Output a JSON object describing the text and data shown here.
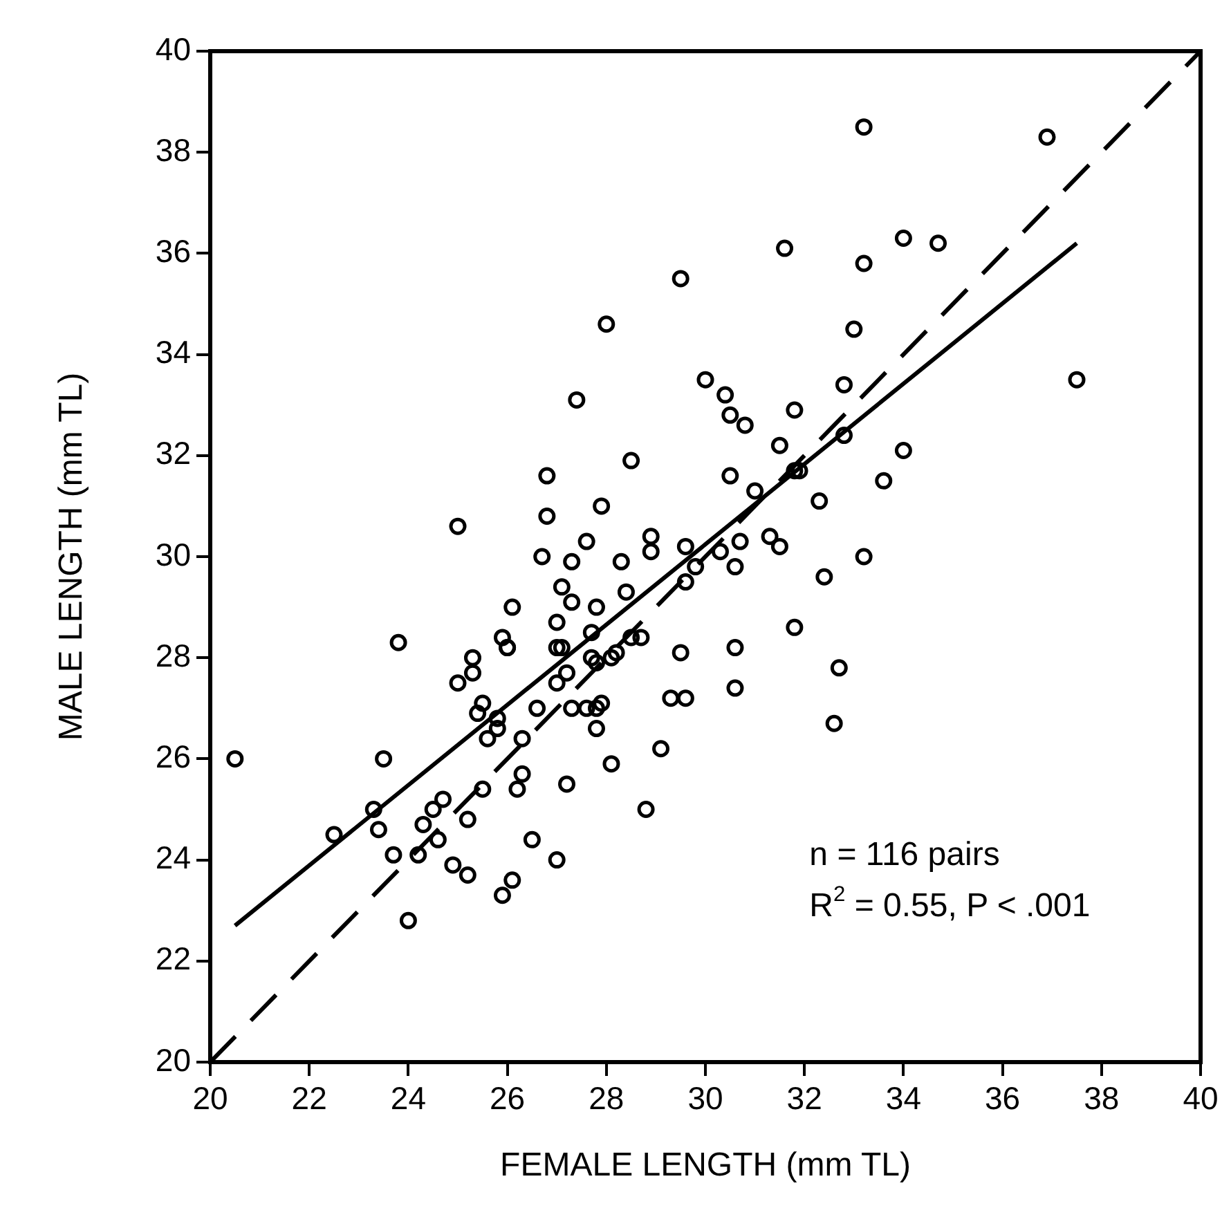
{
  "chart_data": {
    "type": "scatter",
    "xlabel": "FEMALE LENGTH (mm TL)",
    "ylabel": "MALE LENGTH (mm TL)",
    "xlim": [
      20,
      40
    ],
    "xticks": [
      20,
      22,
      24,
      26,
      28,
      30,
      32,
      34,
      36,
      38,
      40
    ],
    "ylim": [
      20,
      40
    ],
    "yticks": [
      20,
      22,
      24,
      26,
      28,
      30,
      32,
      34,
      36,
      38,
      40
    ],
    "grid": false,
    "legend": false,
    "annotations": [
      "n = 116 pairs",
      "R$^{2}$ = 0.55, P < .001"
    ],
    "series": [
      {
        "type": "scatter",
        "color": "#000000",
        "marker": "circle",
        "x": [
          20.5,
          22.5,
          23.3,
          23.4,
          23.5,
          23.7,
          23.8,
          24.0,
          24.2,
          24.3,
          24.5,
          24.6,
          24.7,
          24.9,
          25.0,
          25.0,
          25.2,
          25.2,
          25.3,
          25.3,
          25.4,
          25.5,
          25.5,
          25.6,
          25.8,
          25.8,
          25.9,
          25.9,
          26.0,
          26.0,
          26.1,
          26.1,
          26.2,
          26.3,
          26.3,
          26.5,
          26.6,
          26.7,
          26.8,
          26.8,
          27.0,
          27.0,
          27.0,
          27.0,
          27.1,
          27.1,
          27.2,
          27.2,
          27.3,
          27.3,
          27.3,
          27.4,
          27.6,
          27.6,
          27.7,
          27.7,
          27.8,
          27.8,
          27.8,
          27.8,
          27.9,
          27.9,
          28.0,
          28.1,
          28.1,
          28.2,
          28.3,
          28.4,
          28.5,
          28.5,
          28.7,
          28.8,
          28.9,
          28.9,
          29.1,
          29.3,
          29.5,
          29.5,
          29.6,
          29.6,
          29.6,
          29.8,
          30.0,
          30.3,
          30.4,
          30.5,
          30.5,
          30.6,
          30.6,
          30.6,
          30.7,
          30.8,
          31.0,
          31.3,
          31.5,
          31.5,
          31.6,
          31.8,
          31.8,
          31.8,
          31.9,
          32.3,
          32.4,
          32.6,
          32.7,
          32.8,
          32.8,
          33.0,
          33.2,
          33.2,
          33.2,
          33.6,
          34.0,
          34.0,
          34.7,
          36.9,
          37.5
        ],
        "values": [
          26.0,
          24.5,
          25.0,
          24.6,
          26.0,
          24.1,
          28.3,
          22.8,
          24.1,
          24.7,
          25.0,
          24.4,
          25.2,
          23.9,
          27.5,
          30.6,
          23.7,
          24.8,
          27.7,
          28.0,
          26.9,
          27.1,
          25.4,
          26.4,
          26.6,
          26.8,
          28.4,
          23.3,
          28.2,
          28.2,
          23.6,
          29.0,
          25.4,
          26.4,
          25.7,
          24.4,
          27.0,
          30.0,
          30.8,
          31.6,
          28.7,
          28.2,
          27.5,
          24.0,
          29.4,
          28.2,
          27.7,
          25.5,
          29.9,
          27.0,
          29.1,
          33.1,
          27.0,
          30.3,
          28.5,
          28.0,
          27.9,
          29.0,
          26.6,
          27.0,
          31.0,
          27.1,
          34.6,
          25.9,
          28.0,
          28.1,
          29.9,
          29.3,
          31.9,
          28.4,
          28.4,
          25.0,
          30.4,
          30.1,
          26.2,
          27.2,
          28.1,
          35.5,
          27.2,
          30.2,
          29.5,
          29.8,
          33.5,
          30.1,
          33.2,
          31.6,
          32.8,
          28.2,
          27.4,
          29.8,
          30.3,
          32.6,
          31.3,
          30.4,
          30.2,
          32.2,
          36.1,
          32.9,
          31.7,
          28.6,
          31.7,
          31.1,
          29.6,
          26.7,
          27.8,
          33.4,
          32.4,
          34.5,
          38.5,
          35.8,
          30.0,
          31.5,
          36.3,
          32.1,
          36.2,
          38.3,
          33.5
        ]
      },
      {
        "type": "line",
        "color": "#000000",
        "line_style": "solid",
        "marker": "none",
        "x": [
          20.5,
          37.5
        ],
        "values": [
          22.7,
          36.2
        ]
      },
      {
        "type": "line",
        "color": "#000000",
        "line_style": "dashed",
        "marker": "none",
        "x": [
          20,
          40
        ],
        "values": [
          20,
          40
        ]
      }
    ]
  }
}
